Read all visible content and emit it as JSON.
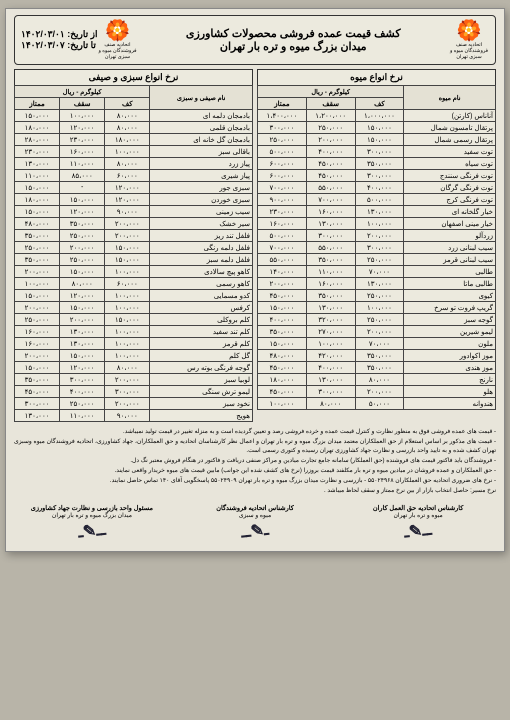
{
  "header": {
    "title_l1": "کشف قیمت عمده فروشی محصولات کشاورزی",
    "title_l2": "میدان بزرگ میوه و تره بار تهران",
    "date_from_label": "از تاریخ:",
    "date_from": "۱۴۰۲/۰۳/۰۱",
    "date_to_label": "تا تاریخ:",
    "date_to": "۱۴۰۲/۰۳/۰۷",
    "logo_sub": "اتحادیه صنف فروشندگان میوه و سبزی تهران"
  },
  "sections": {
    "fruit": "نرخ انواع میوه",
    "veg": "نرخ انواع سبزی و صیفی"
  },
  "cols": {
    "name_fruit": "نام میوه",
    "name_veg": "نام صیفی و سبزی",
    "unit": "کیلوگرم - ریال",
    "kaf": "کف",
    "saghf": "سقف",
    "momtaz": "ممتاز"
  },
  "fruit_rows": [
    {
      "n": "آناناس (کارتن)",
      "k": "۱،۰۰۰،۰۰۰",
      "s": "۱،۲۰۰،۰۰۰",
      "m": "۱،۴۰۰،۰۰۰"
    },
    {
      "n": "پرتقال تامسون شمال",
      "k": "۱۵۰،۰۰۰",
      "s": "۲۵۰،۰۰۰",
      "m": "۳۰۰،۰۰۰"
    },
    {
      "n": "پرتقال رسمی شمال",
      "k": "۱۵۰،۰۰۰",
      "s": "۲۰۰،۰۰۰",
      "m": "۲۵۰،۰۰۰"
    },
    {
      "n": "توت سفید",
      "k": "۳۰۰،۰۰۰",
      "s": "۴۰۰،۰۰۰",
      "m": "۵۰۰،۰۰۰"
    },
    {
      "n": "توت سیاه",
      "k": "۳۵۰،۰۰۰",
      "s": "۴۵۰،۰۰۰",
      "m": "۶۰۰،۰۰۰"
    },
    {
      "n": "توت فرنگی سنندج",
      "k": "۳۰۰،۰۰۰",
      "s": "۴۵۰،۰۰۰",
      "m": "۶۰۰،۰۰۰"
    },
    {
      "n": "توت فرنگی گرگان",
      "k": "۴۰۰،۰۰۰",
      "s": "۵۵۰،۰۰۰",
      "m": "۷۰۰،۰۰۰"
    },
    {
      "n": "توت فرنگی کرج",
      "k": "۵۰۰،۰۰۰",
      "s": "۷۰۰،۰۰۰",
      "m": "۹۰۰،۰۰۰"
    },
    {
      "n": "خیار گلخانه ای",
      "k": "۱۳۰،۰۰۰",
      "s": "۱۶۰،۰۰۰",
      "m": "۲۳۰،۰۰۰"
    },
    {
      "n": "خیار مینی اصفهان",
      "k": "۱۰۰،۰۰۰",
      "s": "۱۳۰،۰۰۰",
      "m": "۱۶۰،۰۰۰"
    },
    {
      "n": "زردآلو",
      "k": "۲۰۰،۰۰۰",
      "s": "۳۰۰،۰۰۰",
      "m": "۵۰۰،۰۰۰"
    },
    {
      "n": "سیب لبنانی زرد",
      "k": "۳۰۰،۰۰۰",
      "s": "۵۵۰،۰۰۰",
      "m": "۷۰۰،۰۰۰"
    },
    {
      "n": "سیب لبنانی قرمز",
      "k": "۲۵۰،۰۰۰",
      "s": "۳۵۰،۰۰۰",
      "m": "۵۵۰،۰۰۰"
    },
    {
      "n": "طالبی",
      "k": "۷۰،۰۰۰",
      "s": "۱۱۰،۰۰۰",
      "m": "۱۴۰،۰۰۰"
    },
    {
      "n": "طالبی ماتا",
      "k": "۱۳۰،۰۰۰",
      "s": "۱۶۰،۰۰۰",
      "m": "۲۰۰،۰۰۰"
    },
    {
      "n": "کیوی",
      "k": "۲۵۰،۰۰۰",
      "s": "۳۵۰،۰۰۰",
      "m": "۴۵۰،۰۰۰"
    },
    {
      "n": "گریپ فروت تو سرخ",
      "k": "۱۰۰،۰۰۰",
      "s": "۱۳۰،۰۰۰",
      "m": "۱۵۰،۰۰۰"
    },
    {
      "n": "گوجه سبز",
      "k": "۲۵۰،۰۰۰",
      "s": "۳۲۰،۰۰۰",
      "m": "۴۰۰،۰۰۰"
    },
    {
      "n": "لیمو شیرین",
      "k": "۲۰۰،۰۰۰",
      "s": "۲۷۰،۰۰۰",
      "m": "۳۵۰،۰۰۰"
    },
    {
      "n": "ملون",
      "k": "۷۰،۰۰۰",
      "s": "۱۰۰،۰۰۰",
      "m": "۱۵۰،۰۰۰"
    },
    {
      "n": "موز اکوادور",
      "k": "۳۵۰،۰۰۰",
      "s": "۴۲۰،۰۰۰",
      "m": "۴۸۰،۰۰۰"
    },
    {
      "n": "موز هندی",
      "k": "۳۵۰،۰۰۰",
      "s": "۴۰۰،۰۰۰",
      "m": "۴۵۰،۰۰۰"
    },
    {
      "n": "نارنج",
      "k": "۸۰،۰۰۰",
      "s": "۱۳۰،۰۰۰",
      "m": "۱۸۰،۰۰۰"
    },
    {
      "n": "هلو",
      "k": "۲۰۰،۰۰۰",
      "s": "۳۰۰،۰۰۰",
      "m": "۴۵۰،۰۰۰"
    },
    {
      "n": "هندوانه",
      "k": "۵۰،۰۰۰",
      "s": "۸۰،۰۰۰",
      "m": "۱۰۰،۰۰۰"
    }
  ],
  "veg_rows": [
    {
      "n": "بادمجان دلمه ای",
      "k": "۸۰،۰۰۰",
      "s": "۱۰۰،۰۰۰",
      "m": "۱۵۰،۰۰۰"
    },
    {
      "n": "بادمجان قلمی",
      "k": "۸۰،۰۰۰",
      "s": "۱۲۰،۰۰۰",
      "m": "۱۸۰،۰۰۰"
    },
    {
      "n": "بادمجان گل خانه ای",
      "k": "۱۸۰،۰۰۰",
      "s": "۲۳۰،۰۰۰",
      "m": "۲۸۰،۰۰۰"
    },
    {
      "n": "باقالی سبز",
      "k": "۱۰۰،۰۰۰",
      "s": "۱۶۰،۰۰۰",
      "m": "۲۳۰،۰۰۰"
    },
    {
      "n": "پیاز زرد",
      "k": "۸۰،۰۰۰",
      "s": "۱۱۰،۰۰۰",
      "m": "۱۳۰،۰۰۰"
    },
    {
      "n": "پیاز شیری",
      "k": "۶۰،۰۰۰",
      "s": "۸۵،۰۰۰",
      "m": "۱۱۰،۰۰۰"
    },
    {
      "n": "سبزی جور",
      "k": "۱۲۰،۰۰۰",
      "s": "-",
      "m": "۱۵۰،۰۰۰"
    },
    {
      "n": "سبزی خوردن",
      "k": "۱۲۰،۰۰۰",
      "s": "۱۵۰،۰۰۰",
      "m": "۱۸۰،۰۰۰"
    },
    {
      "n": "سیب زمینی",
      "k": "۹۰،۰۰۰",
      "s": "۱۲۰،۰۰۰",
      "m": "۱۵۰،۰۰۰"
    },
    {
      "n": "سیر خشک",
      "k": "۲۰۰،۰۰۰",
      "s": "۳۵۰،۰۰۰",
      "m": "۴۸۰،۰۰۰"
    },
    {
      "n": "فلفل تند ریز",
      "k": "۲۰۰،۰۰۰",
      "s": "۲۵۰،۰۰۰",
      "m": "۳۵۰،۰۰۰"
    },
    {
      "n": "فلفل دلمه رنگی",
      "k": "۱۵۰،۰۰۰",
      "s": "۲۰۰،۰۰۰",
      "m": "۲۵۰،۰۰۰"
    },
    {
      "n": "فلفل دلمه سبز",
      "k": "۱۵۰،۰۰۰",
      "s": "۲۵۰،۰۰۰",
      "m": "۳۵۰،۰۰۰"
    },
    {
      "n": "کاهو پیچ سالادی",
      "k": "۱۰۰،۰۰۰",
      "s": "۱۵۰،۰۰۰",
      "m": "۲۰۰،۰۰۰"
    },
    {
      "n": "کاهو رسمی",
      "k": "۶۰،۰۰۰",
      "s": "۸۰،۰۰۰",
      "m": "۱۰۰،۰۰۰"
    },
    {
      "n": "کدو مسمایی",
      "k": "۱۰۰،۰۰۰",
      "s": "۱۲۰،۰۰۰",
      "m": "۱۵۰،۰۰۰"
    },
    {
      "n": "کرفس",
      "k": "۱۰۰،۰۰۰",
      "s": "۱۵۰،۰۰۰",
      "m": "۲۰۰،۰۰۰"
    },
    {
      "n": "کلم بروکلی",
      "k": "۱۵۰،۰۰۰",
      "s": "۲۰۰،۰۰۰",
      "m": "۲۵۰،۰۰۰"
    },
    {
      "n": "کلم تند سفید",
      "k": "۱۰۰،۰۰۰",
      "s": "۱۳۰،۰۰۰",
      "m": "۱۶۰،۰۰۰"
    },
    {
      "n": "کلم قرمز",
      "k": "۱۰۰،۰۰۰",
      "s": "۱۳۰،۰۰۰",
      "m": "۱۶۰،۰۰۰"
    },
    {
      "n": "گل کلم",
      "k": "۱۰۰،۰۰۰",
      "s": "۱۵۰،۰۰۰",
      "m": "۲۰۰،۰۰۰"
    },
    {
      "n": "گوجه فرنگی بوته رس",
      "k": "۸۰،۰۰۰",
      "s": "۱۲۰،۰۰۰",
      "m": "۱۵۰،۰۰۰"
    },
    {
      "n": "لوبیا سبز",
      "k": "۲۰۰،۰۰۰",
      "s": "۳۰۰،۰۰۰",
      "m": "۳۵۰،۰۰۰"
    },
    {
      "n": "لیمو ترش سنگی",
      "k": "۳۰۰،۰۰۰",
      "s": "۴۰۰،۰۰۰",
      "m": "۴۵۰،۰۰۰"
    },
    {
      "n": "نخود سبز",
      "k": "۲۰۰،۰۰۰",
      "s": "۲۵۰،۰۰۰",
      "m": "۳۰۰،۰۰۰"
    },
    {
      "n": "هویج",
      "k": "۹۰،۰۰۰",
      "s": "۱۱۰،۰۰۰",
      "m": "۱۳۰،۰۰۰"
    }
  ],
  "notes": [
    "- قیمت های عمده فروشی فوق به منظور نظارت و کنترل قیمت عمده و خرده فروشی رصد و تعیین گردیده است و به منزله تغییر در قیمت تولید نمیباشد.",
    "- قیمت های مذکور بر اساس استعلام از حق العملکاران معتمد میدان بزرگ میوه و تره بار تهران و اعمال نظر کارشناسان اتحادیه و حق العملکاران، جهاد کشاورزی، اتحادیه فروشندگان میوه وسبزی تهران کشف شده و به تایید واحد بازرسی و نظارت جهاد کشاورزی تهران رسیده و کتوری رسمی است.",
    "- فروشندگان باید فاکتور قیمت های فروشنده (حق العملکار) سامانه جامع تجارت میادین و مراکز صنفی دریافت و فاکتور در هنگام فروش معتبر نگ دل.",
    "- حق العملکاران و عمده فروشان در میادین میوه و تره بار مکلفند قیمت بروزرا (نرخ های کشف شده این جوانب) مابین قیمت های میوه خریدار واقعی نمایند.",
    "- نرخ های ضروری اتحادیه حق العملکاران ۵۵۰۲۴۹۶۸ - بازرسی و نظارت میدان بزرگ میوه و تره بار تهران ۵۵۰۲۴۹۰۹ پاسخگویی آقای ۱۴۰ تماس حاصل نمایند.",
    "نرخ مسیر: حاصل انتخاب بازار از بین نرخ ممتاز و سقف لحاظ میباشد ."
  ],
  "signatures": {
    "s1_l1": "کارشناس اتحادیه حق العمل کاران",
    "s1_l2": "میوه و تره بار تهران",
    "s2_l1": "کارشناس اتحادیه فروشندگان",
    "s2_l2": "میوه و سبزی",
    "s3_l1": "مسئول واحد بازرسی و نظارت جهاد کشاورزی",
    "s3_l2": "میدان بزرگ میوه و تره بار تهران"
  }
}
